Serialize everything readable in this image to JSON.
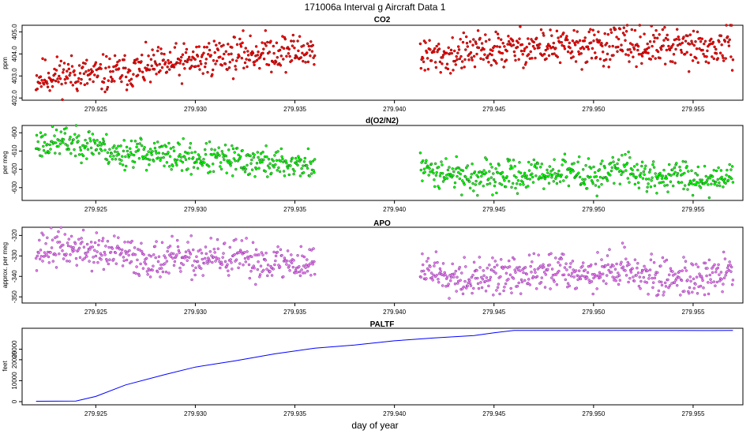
{
  "figure": {
    "title": "171006a   Interval g Aircraft Data 1",
    "xlabel": "day of year"
  },
  "chart_data": [
    {
      "id": "co2",
      "type": "scatter",
      "title": "CO2",
      "ylabel": "ppm",
      "color": "#ff0000",
      "outline": "#7a0000",
      "xlim": [
        279.9213,
        279.9575
      ],
      "ylim": [
        401.9,
        405.3
      ],
      "xticks": [
        "279.925",
        "279.930",
        "279.935",
        "279.940",
        "279.945",
        "279.950",
        "279.955"
      ],
      "yticks": [
        "402.0",
        "403.0",
        "404.0",
        "405.0"
      ],
      "series": [
        {
          "name": "segment-1",
          "x": [
            279.922,
            279.9235,
            279.925,
            279.9265,
            279.928,
            279.9295,
            279.931,
            279.9325,
            279.934,
            279.9355,
            279.936
          ],
          "y": [
            402.9,
            403.1,
            403.0,
            403.2,
            403.4,
            403.6,
            403.9,
            404.0,
            404.1,
            404.1,
            404.2
          ]
        },
        {
          "name": "segment-2",
          "x": [
            279.9413,
            279.9425,
            279.944,
            279.9455,
            279.947,
            279.9485,
            279.95,
            279.9515,
            279.953,
            279.9545,
            279.956,
            279.957
          ],
          "y": [
            403.9,
            403.9,
            404.1,
            404.2,
            404.3,
            404.3,
            404.3,
            404.4,
            404.3,
            404.3,
            404.2,
            404.4
          ]
        }
      ]
    },
    {
      "id": "do2n2",
      "type": "scatter",
      "title": "d(O2/N2)",
      "ylabel": "per meg",
      "color": "#00ff00",
      "outline": "#1a6b1a",
      "xlim": [
        279.9213,
        279.9575
      ],
      "ylim": [
        -637,
        -596
      ],
      "xticks": [
        "279.925",
        "279.930",
        "279.935",
        "279.940",
        "279.945",
        "279.950",
        "279.955"
      ],
      "yticks": [
        "-630",
        "-620",
        "-610",
        "-600"
      ],
      "series": [
        {
          "name": "segment-1",
          "x": [
            279.922,
            279.9235,
            279.925,
            279.926,
            279.927,
            279.9285,
            279.93,
            279.9315,
            279.933,
            279.9345,
            279.936
          ],
          "y": [
            -606,
            -605,
            -606,
            -612,
            -610,
            -613,
            -614,
            -615,
            -616,
            -617,
            -618
          ]
        },
        {
          "name": "segment-2",
          "x": [
            279.9413,
            279.9425,
            279.944,
            279.9455,
            279.947,
            279.9485,
            279.95,
            279.9515,
            279.953,
            279.9545,
            279.956,
            279.957
          ],
          "y": [
            -620,
            -621,
            -625,
            -624,
            -623,
            -621,
            -624,
            -619,
            -625,
            -623,
            -626,
            -621
          ]
        }
      ]
    },
    {
      "id": "apo",
      "type": "scatter",
      "title": "APO",
      "ylabel": "approx. per meg",
      "color": "#ee82ee",
      "outline": "#7a2a9a",
      "xlim": [
        279.9213,
        279.9575
      ],
      "ylim": [
        -353,
        -316
      ],
      "xticks": [
        "279.925",
        "279.930",
        "279.935",
        "279.940",
        "279.945",
        "279.950",
        "279.955"
      ],
      "yticks": [
        "-350",
        "-340",
        "-330",
        "-320"
      ],
      "series": [
        {
          "name": "segment-1",
          "x": [
            279.922,
            279.9235,
            279.925,
            279.9265,
            279.928,
            279.9295,
            279.931,
            279.9325,
            279.934,
            279.936
          ],
          "y": [
            -327,
            -326,
            -328,
            -330,
            -332,
            -332,
            -331,
            -332,
            -333,
            -334
          ]
        },
        {
          "name": "segment-2",
          "x": [
            279.9413,
            279.9425,
            279.944,
            279.9455,
            279.947,
            279.9485,
            279.95,
            279.9515,
            279.953,
            279.9545,
            279.956,
            279.957
          ],
          "y": [
            -336,
            -338,
            -341,
            -340,
            -339,
            -336,
            -339,
            -335,
            -341,
            -340,
            -341,
            -336
          ]
        }
      ]
    },
    {
      "id": "paltf",
      "type": "line",
      "title": "PALTF",
      "ylabel": "feet",
      "color": "#0000ff",
      "xlim": [
        279.9213,
        279.9575
      ],
      "ylim": [
        -1500,
        35000
      ],
      "xticks": [
        "279.925",
        "279.930",
        "279.935",
        "279.940",
        "279.945",
        "279.950",
        "279.955"
      ],
      "yticks": [
        "0",
        "10000",
        "20000",
        "25000"
      ],
      "series": [
        {
          "name": "PALTF",
          "x": [
            279.922,
            279.924,
            279.925,
            279.9265,
            279.9285,
            279.93,
            279.932,
            279.934,
            279.936,
            279.938,
            279.94,
            279.942,
            279.944,
            279.945,
            279.946,
            279.948,
            279.95,
            279.952,
            279.954,
            279.956,
            279.957
          ],
          "y": [
            200,
            300,
            2500,
            8000,
            13000,
            16500,
            19500,
            22800,
            25500,
            27000,
            29000,
            30400,
            31500,
            32800,
            34000,
            34000,
            34000,
            34000,
            34000,
            33900,
            34000
          ]
        }
      ]
    }
  ]
}
